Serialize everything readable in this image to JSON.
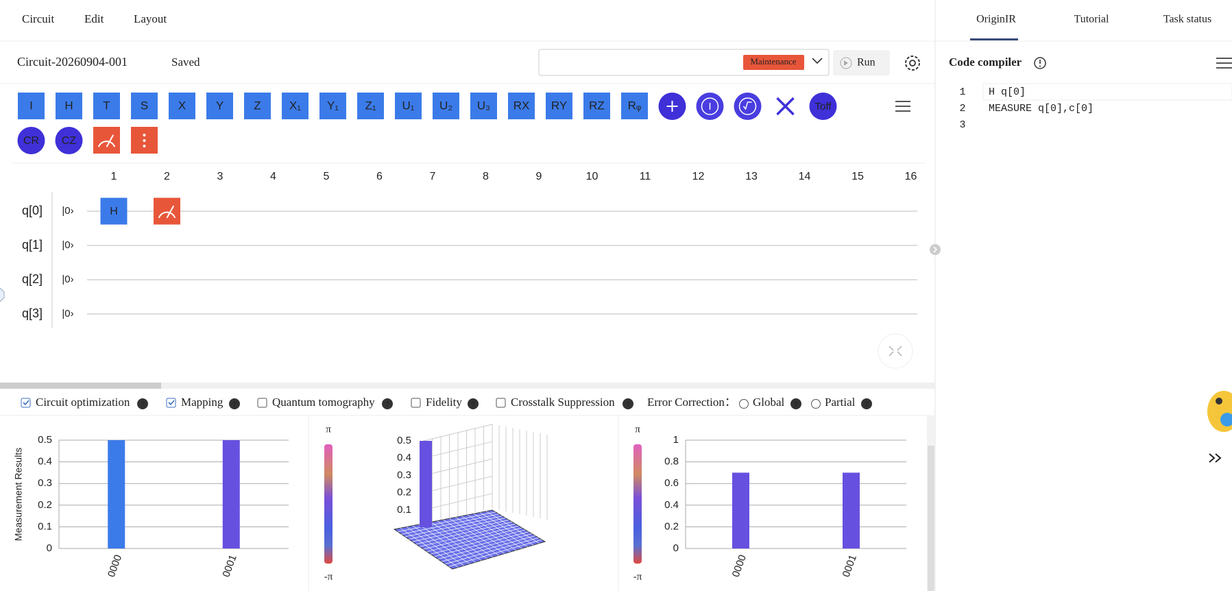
{
  "menu": [
    "Circuit",
    "Edit",
    "Layout"
  ],
  "circuit_name": "Circuit-20260904-001",
  "save_status": "Saved",
  "backend_badge": "Maintenance",
  "run_button": "Run",
  "gates_row1": [
    "I",
    "H",
    "T",
    "S",
    "X",
    "Y",
    "Z",
    "X₁",
    "Y₁",
    "Z₁",
    "U₁",
    "U₂",
    "U₃",
    "RX",
    "RY",
    "RZ",
    "Rᵩ"
  ],
  "toffoli_gate": "Toff",
  "gates_row2": [
    "CR",
    "CZ"
  ],
  "columns": [
    "1",
    "2",
    "3",
    "4",
    "5",
    "6",
    "7",
    "8",
    "9",
    "10",
    "11",
    "12",
    "13",
    "14",
    "15",
    "16"
  ],
  "qubits": [
    "q[0]",
    "q[1]",
    "q[2]",
    "q[3]"
  ],
  "initial_state": "|0›",
  "placed_gates": [
    {
      "qubit": 0,
      "column": 1,
      "label": "H"
    }
  ],
  "options": [
    {
      "label": "Circuit optimization",
      "checked": true
    },
    {
      "label": "Mapping",
      "checked": true
    },
    {
      "label": "Quantum tomography",
      "checked": false
    },
    {
      "label": "Fidelity",
      "checked": false
    },
    {
      "label": "Crosstalk Suppression",
      "checked": false
    }
  ],
  "error_correction": {
    "label": "Error Correction：",
    "choices": [
      "Global",
      "Partial"
    ]
  },
  "tabs": [
    "OriginIR",
    "Tutorial",
    "Task status"
  ],
  "compiler_title": "Code compiler",
  "code_lines": [
    {
      "number": "1",
      "text": "H q[0]"
    },
    {
      "number": "2",
      "text": "MEASURE q[0],c[0]"
    },
    {
      "number": "3",
      "text": ""
    }
  ],
  "chart_data": [
    {
      "type": "bar",
      "ylabel": "Measurement Results",
      "categories": [
        "0000",
        "0001"
      ],
      "values": [
        0.5,
        0.5
      ],
      "colors": [
        "#3b7be9",
        "#6650e0"
      ],
      "ylim": [
        0,
        0.5
      ],
      "yticks": [
        0,
        0.1,
        0.2,
        0.3,
        0.4,
        0.5
      ],
      "grid": true
    },
    {
      "type": "bar3d",
      "categories": [
        null
      ],
      "values": [
        0.5
      ],
      "color": "#6650e0",
      "zlim": [
        0,
        0.5
      ],
      "zticks": [
        0.1,
        0.2,
        0.3,
        0.4,
        0.5
      ],
      "colorbar": [
        "π",
        "-π"
      ]
    },
    {
      "type": "bar",
      "categories": [
        "0000",
        "0001"
      ],
      "values": [
        0.7,
        0.7
      ],
      "colors": [
        "#6650e0",
        "#6650e0"
      ],
      "ylim": [
        0,
        1
      ],
      "yticks": [
        0,
        0.2,
        0.4,
        0.6,
        0.8,
        1
      ],
      "grid": true,
      "colorbar": [
        "π",
        "-π"
      ]
    }
  ]
}
